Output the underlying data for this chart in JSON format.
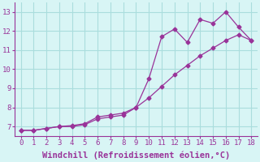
{
  "line1_x": [
    0,
    1,
    2,
    3,
    4,
    5,
    6,
    7,
    8,
    9,
    10,
    11,
    12,
    13,
    14,
    15,
    16,
    17,
    18
  ],
  "line1_y": [
    6.8,
    6.8,
    6.9,
    7.0,
    7.0,
    7.1,
    7.4,
    7.5,
    7.6,
    8.0,
    8.5,
    9.1,
    9.7,
    10.2,
    10.7,
    11.1,
    11.5,
    11.8,
    11.5
  ],
  "line2_x": [
    0,
    1,
    2,
    3,
    4,
    5,
    6,
    7,
    8,
    9,
    10,
    11,
    12,
    13,
    14,
    15,
    16,
    17,
    18
  ],
  "line2_y": [
    6.8,
    6.8,
    6.9,
    7.0,
    7.05,
    7.15,
    7.5,
    7.6,
    7.7,
    8.0,
    9.5,
    11.7,
    12.1,
    11.4,
    12.6,
    12.4,
    13.0,
    12.2,
    11.5
  ],
  "line_color": "#993399",
  "bg_color": "#d8f5f5",
  "grid_color": "#aadddd",
  "xlabel": "Windchill (Refroidissement éolien,°C)",
  "xlim": [
    -0.5,
    18.5
  ],
  "ylim": [
    6.5,
    13.5
  ],
  "xticks": [
    0,
    1,
    2,
    3,
    4,
    5,
    6,
    7,
    8,
    9,
    10,
    11,
    12,
    13,
    14,
    15,
    16,
    17,
    18
  ],
  "yticks": [
    7,
    8,
    9,
    10,
    11,
    12,
    13
  ],
  "tick_fontsize": 6.5,
  "xlabel_fontsize": 7.5,
  "marker": "D",
  "markersize": 2.5,
  "linewidth": 0.9
}
